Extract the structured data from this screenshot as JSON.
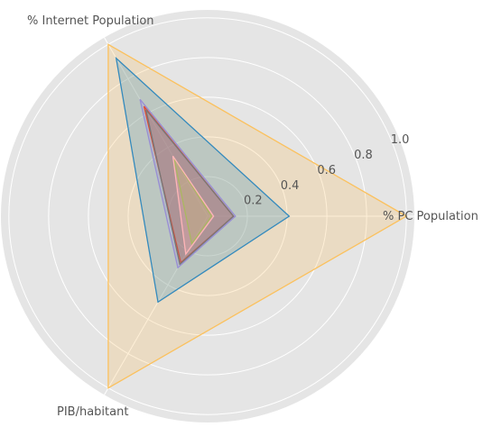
{
  "chart_data": {
    "type": "radar",
    "axes": [
      "% PC Population",
      "% Internet Population",
      "PIB/habitant"
    ],
    "rlim": [
      0,
      1.04
    ],
    "radial_ticks": [
      {
        "value": 0.2,
        "label": "0.2"
      },
      {
        "value": 0.4,
        "label": "0.4"
      },
      {
        "value": 0.6,
        "label": "0.6"
      },
      {
        "value": 0.8,
        "label": "0.8"
      },
      {
        "value": 1.0,
        "label": "1.0"
      }
    ],
    "grid": true,
    "series": [
      {
        "values": [
          1.0,
          1.0,
          1.0
        ],
        "color": "#fbc15e"
      },
      {
        "values": [
          0.41,
          0.92,
          0.5
        ],
        "color": "#348abd"
      },
      {
        "values": [
          0.14,
          0.68,
          0.3
        ],
        "color": "#988ed5"
      },
      {
        "values": [
          0.13,
          0.64,
          0.27
        ],
        "color": "#e24a33"
      },
      {
        "values": [
          0.13,
          0.62,
          0.28
        ],
        "color": "#777777"
      },
      {
        "values": [
          0.02,
          0.34,
          0.16
        ],
        "color": "#8eba42"
      },
      {
        "values": [
          0.03,
          0.35,
          0.22
        ],
        "color": "#ffb5b8"
      }
    ]
  }
}
